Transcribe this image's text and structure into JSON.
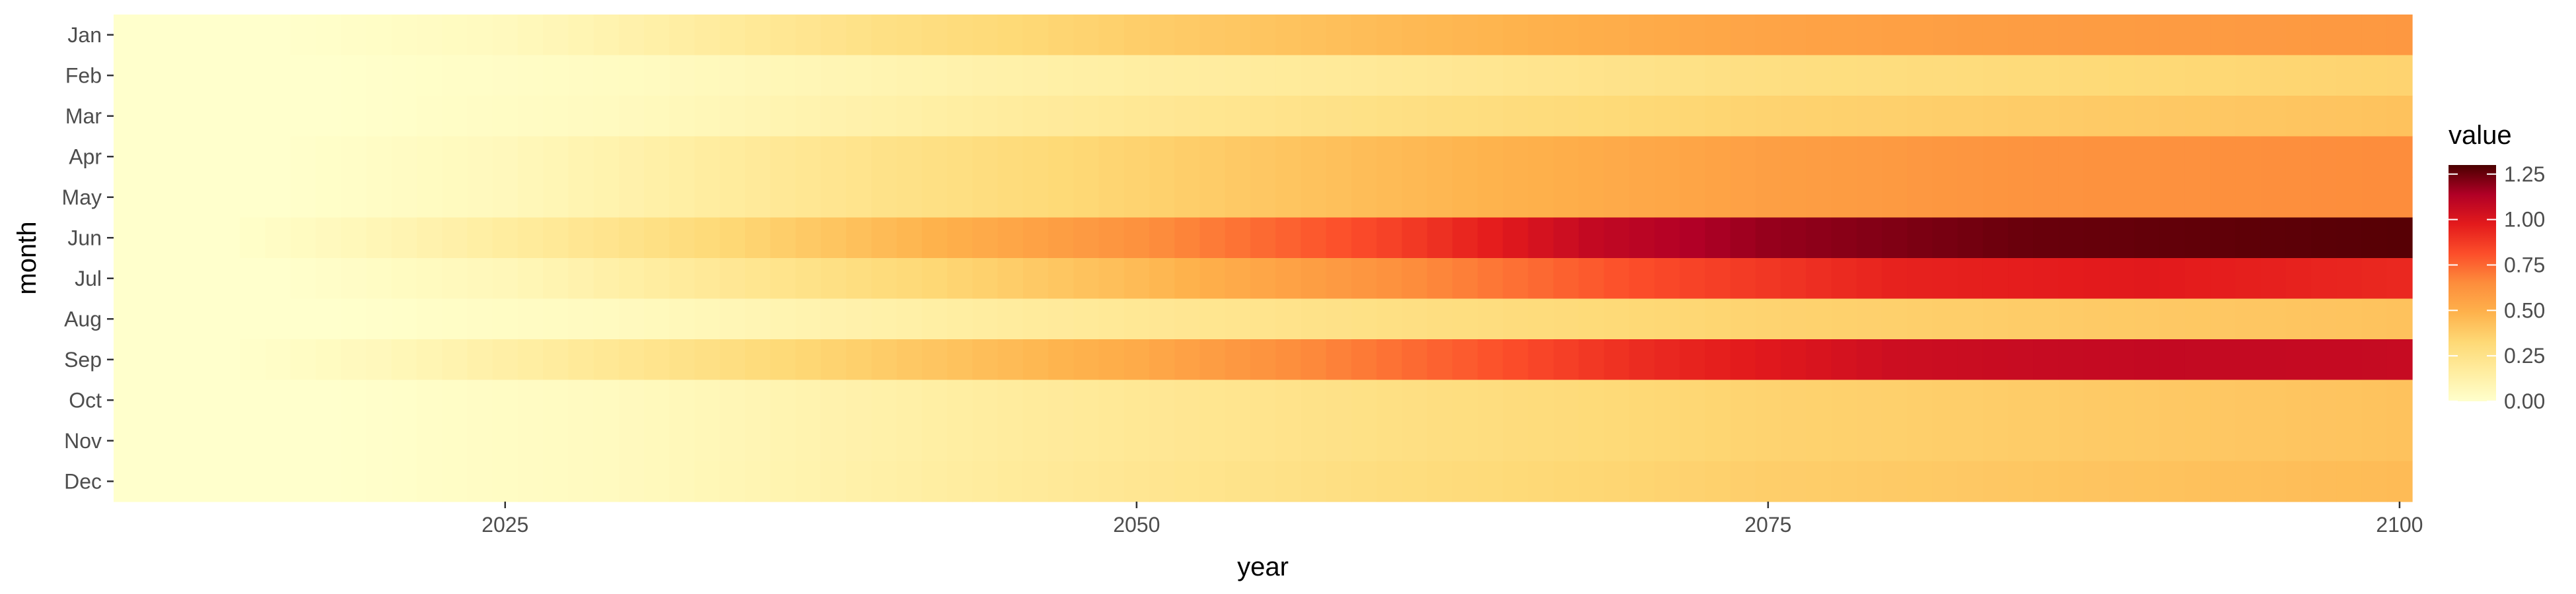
{
  "chart_data": {
    "type": "heatmap",
    "xlabel": "year",
    "ylabel": "month",
    "x_range": [
      2010,
      2100
    ],
    "x_ticks": [
      2025,
      2050,
      2075,
      2100
    ],
    "categories": [
      "Jan",
      "Feb",
      "Mar",
      "Apr",
      "May",
      "Jun",
      "Jul",
      "Aug",
      "Sep",
      "Oct",
      "Nov",
      "Dec"
    ],
    "month_profiles": [
      {
        "month": "Jan",
        "keys": [
          [
            2010,
            0.0
          ],
          [
            2016,
            0.0
          ],
          [
            2025,
            0.05
          ],
          [
            2040,
            0.27
          ],
          [
            2050,
            0.37
          ],
          [
            2060,
            0.45
          ],
          [
            2075,
            0.55
          ],
          [
            2085,
            0.58
          ],
          [
            2100,
            0.6
          ]
        ]
      },
      {
        "month": "Feb",
        "keys": [
          [
            2010,
            0.0
          ],
          [
            2018,
            0.0
          ],
          [
            2030,
            0.04
          ],
          [
            2045,
            0.13
          ],
          [
            2060,
            0.2
          ],
          [
            2075,
            0.28
          ],
          [
            2100,
            0.35
          ]
        ]
      },
      {
        "month": "Mar",
        "keys": [
          [
            2010,
            0.0
          ],
          [
            2018,
            0.0
          ],
          [
            2030,
            0.05
          ],
          [
            2045,
            0.17
          ],
          [
            2060,
            0.27
          ],
          [
            2075,
            0.35
          ],
          [
            2100,
            0.42
          ]
        ]
      },
      {
        "month": "Apr",
        "keys": [
          [
            2010,
            0.0
          ],
          [
            2016,
            0.0
          ],
          [
            2025,
            0.06
          ],
          [
            2040,
            0.25
          ],
          [
            2050,
            0.35
          ],
          [
            2060,
            0.45
          ],
          [
            2075,
            0.57
          ],
          [
            2085,
            0.62
          ],
          [
            2100,
            0.65
          ]
        ]
      },
      {
        "month": "May",
        "keys": [
          [
            2010,
            0.0
          ],
          [
            2016,
            0.0
          ],
          [
            2025,
            0.06
          ],
          [
            2040,
            0.25
          ],
          [
            2050,
            0.35
          ],
          [
            2060,
            0.45
          ],
          [
            2075,
            0.57
          ],
          [
            2085,
            0.62
          ],
          [
            2100,
            0.65
          ]
        ]
      },
      {
        "month": "Jun",
        "keys": [
          [
            2010,
            0.0
          ],
          [
            2014,
            0.0
          ],
          [
            2020,
            0.08
          ],
          [
            2030,
            0.25
          ],
          [
            2040,
            0.45
          ],
          [
            2050,
            0.63
          ],
          [
            2060,
            0.85
          ],
          [
            2068,
            1.08
          ],
          [
            2075,
            1.18
          ],
          [
            2085,
            1.25
          ],
          [
            2100,
            1.28
          ]
        ]
      },
      {
        "month": "Jul",
        "keys": [
          [
            2010,
            0.0
          ],
          [
            2016,
            0.0
          ],
          [
            2025,
            0.07
          ],
          [
            2040,
            0.3
          ],
          [
            2050,
            0.45
          ],
          [
            2060,
            0.63
          ],
          [
            2070,
            0.82
          ],
          [
            2080,
            0.95
          ],
          [
            2090,
            0.98
          ],
          [
            2100,
            0.93
          ]
        ]
      },
      {
        "month": "Aug",
        "keys": [
          [
            2010,
            0.0
          ],
          [
            2018,
            0.0
          ],
          [
            2030,
            0.05
          ],
          [
            2045,
            0.17
          ],
          [
            2060,
            0.27
          ],
          [
            2075,
            0.35
          ],
          [
            2100,
            0.42
          ]
        ]
      },
      {
        "month": "Sep",
        "keys": [
          [
            2010,
            0.0
          ],
          [
            2014,
            0.0
          ],
          [
            2020,
            0.06
          ],
          [
            2030,
            0.22
          ],
          [
            2040,
            0.38
          ],
          [
            2050,
            0.52
          ],
          [
            2060,
            0.72
          ],
          [
            2070,
            0.92
          ],
          [
            2080,
            1.05
          ],
          [
            2090,
            1.08
          ],
          [
            2100,
            1.07
          ]
        ]
      },
      {
        "month": "Oct",
        "keys": [
          [
            2010,
            0.0
          ],
          [
            2018,
            0.0
          ],
          [
            2030,
            0.05
          ],
          [
            2045,
            0.17
          ],
          [
            2060,
            0.27
          ],
          [
            2075,
            0.35
          ],
          [
            2100,
            0.42
          ]
        ]
      },
      {
        "month": "Nov",
        "keys": [
          [
            2010,
            0.0
          ],
          [
            2018,
            0.0
          ],
          [
            2030,
            0.05
          ],
          [
            2045,
            0.17
          ],
          [
            2060,
            0.27
          ],
          [
            2075,
            0.35
          ],
          [
            2100,
            0.42
          ]
        ]
      },
      {
        "month": "Dec",
        "keys": [
          [
            2010,
            0.0
          ],
          [
            2018,
            0.0
          ],
          [
            2030,
            0.05
          ],
          [
            2045,
            0.18
          ],
          [
            2060,
            0.29
          ],
          [
            2075,
            0.37
          ],
          [
            2100,
            0.45
          ]
        ]
      }
    ],
    "legend": {
      "title": "value",
      "ticks": [
        0.0,
        0.25,
        0.5,
        0.75,
        1.0,
        1.25
      ],
      "tick_labels": [
        "0.00",
        "0.25",
        "0.50",
        "0.75",
        "1.00",
        "1.25"
      ],
      "range": [
        0.0,
        1.3
      ]
    },
    "colorscale": [
      [
        0.0,
        "#ffffcc"
      ],
      [
        0.125,
        "#ffeda0"
      ],
      [
        0.25,
        "#fed976"
      ],
      [
        0.375,
        "#feb24c"
      ],
      [
        0.5,
        "#fd8d3c"
      ],
      [
        0.625,
        "#fc4e2a"
      ],
      [
        0.75,
        "#e31a1c"
      ],
      [
        0.875,
        "#b10026"
      ],
      [
        1.0,
        "#4a0000"
      ]
    ],
    "panel_background": "#ebebeb",
    "grid": false,
    "legend_position": "right"
  }
}
